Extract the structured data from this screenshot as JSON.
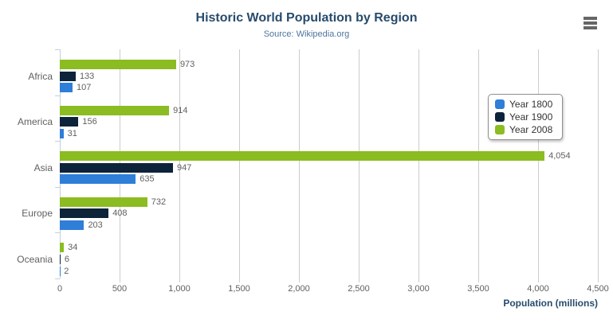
{
  "chart_data": {
    "type": "bar",
    "orientation": "horizontal",
    "title": "Historic World Population by Region",
    "subtitle": "Source: Wikipedia.org",
    "categories": [
      "Africa",
      "America",
      "Asia",
      "Europe",
      "Oceania"
    ],
    "series": [
      {
        "name": "Year 1800",
        "color": "#2f7ed8",
        "values": [
          107,
          31,
          635,
          203,
          2
        ]
      },
      {
        "name": "Year 1900",
        "color": "#0d233a",
        "values": [
          133,
          156,
          947,
          408,
          6
        ]
      },
      {
        "name": "Year 2008",
        "color": "#8bbc21",
        "values": [
          973,
          914,
          4054,
          732,
          34
        ]
      }
    ],
    "series_display_order_top_to_bottom": [
      "Year 2008",
      "Year 1900",
      "Year 1800"
    ],
    "xlabel": "Population (millions)",
    "ylabel": "",
    "xlim": [
      0,
      4500
    ],
    "x_tick_step": 500,
    "x_tick_labels": [
      "0",
      "500",
      "1,000",
      "1,500",
      "2,000",
      "2,500",
      "3,000",
      "3,500",
      "4,000",
      "4,500"
    ],
    "grid": true,
    "data_labels": true,
    "legend": {
      "position": "right-inside",
      "items": [
        "Year 1800",
        "Year 1900",
        "Year 2008"
      ]
    }
  },
  "colors": {
    "title": "#274b6d",
    "subtitle": "#4d759e",
    "axis_label": "#606060",
    "data_label": "#606060",
    "grid_line": "#cccccc",
    "axis_line": "#c0d0e0",
    "legend_border": "#909090",
    "legend_text": "#333333",
    "menu_icon": "#666666"
  }
}
